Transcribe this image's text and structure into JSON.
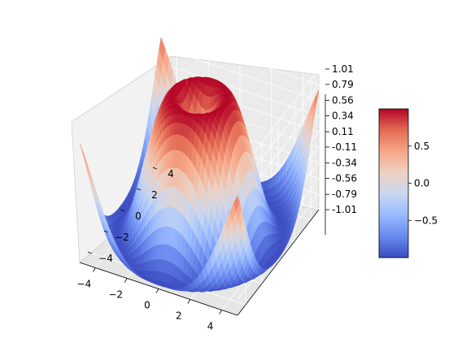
{
  "chart_data": {
    "type": "surface3d",
    "function": "z = sin(sqrt(x^2 + y^2))",
    "colormap": "coolwarm",
    "x_range": [
      -5,
      5
    ],
    "y_range": [
      -5,
      5
    ],
    "z_range": [
      -1.01,
      1.01
    ],
    "x_ticks": [
      "−4",
      "−2",
      "0",
      "2",
      "4"
    ],
    "y_ticks": [
      "−4",
      "−2",
      "0",
      "2",
      "4"
    ],
    "z_ticks": [
      "1.01",
      "0.79",
      "0.56",
      "0.34",
      "0.11",
      "-0.11",
      "-0.34",
      "-0.56",
      "-0.79",
      "-1.01"
    ],
    "colorbar": {
      "range": [
        -1,
        1
      ],
      "ticks": [
        "0.5",
        "0.0",
        "−0.5"
      ],
      "colors": [
        "#3b4cc0",
        "#6788ee",
        "#9abbff",
        "#c9d7f0",
        "#edd1c2",
        "#f7a889",
        "#e26952",
        "#b40426"
      ]
    },
    "title": "",
    "xlabel": "",
    "ylabel": "",
    "zlabel": "",
    "grid": true
  }
}
